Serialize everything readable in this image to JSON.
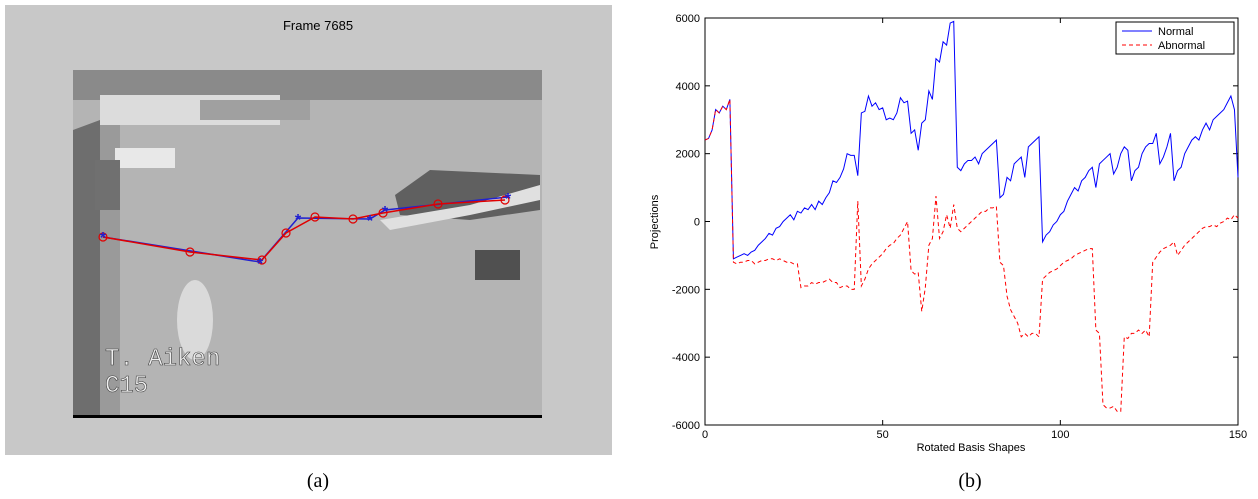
{
  "panel_a": {
    "title": "Frame 7685",
    "overlay_lines": [
      "T. Aiken",
      "C15"
    ],
    "caption": "(a)"
  },
  "chart_data": {
    "type": "line",
    "caption": "(b)",
    "xlabel": "Rotated Basis Shapes",
    "ylabel": "Projections",
    "xlim": [
      0,
      150
    ],
    "xticks": [
      0,
      50,
      100,
      150
    ],
    "ylim": [
      -6000,
      6000
    ],
    "yticks": [
      -6000,
      -4000,
      -2000,
      0,
      2000,
      4000,
      6000
    ],
    "legend": "upper right",
    "x": [
      0,
      1,
      2,
      3,
      4,
      5,
      6,
      7,
      8,
      9,
      10,
      11,
      12,
      13,
      14,
      15,
      16,
      17,
      18,
      19,
      20,
      21,
      22,
      23,
      24,
      25,
      26,
      27,
      28,
      29,
      30,
      31,
      32,
      33,
      34,
      35,
      36,
      37,
      38,
      39,
      40,
      41,
      42,
      43,
      44,
      45,
      46,
      47,
      48,
      49,
      50,
      51,
      52,
      53,
      54,
      55,
      56,
      57,
      58,
      59,
      60,
      61,
      62,
      63,
      64,
      65,
      66,
      67,
      68,
      69,
      70,
      71,
      72,
      73,
      74,
      75,
      76,
      77,
      78,
      79,
      80,
      81,
      82,
      83,
      84,
      85,
      86,
      87,
      88,
      89,
      90,
      91,
      92,
      93,
      94,
      95,
      96,
      97,
      98,
      99,
      100,
      101,
      102,
      103,
      104,
      105,
      106,
      107,
      108,
      109,
      110,
      111,
      112,
      113,
      114,
      115,
      116,
      117,
      118,
      119,
      120,
      121,
      122,
      123,
      124,
      125,
      126,
      127,
      128,
      129,
      130,
      131,
      132,
      133,
      134,
      135,
      136,
      137,
      138,
      139,
      140,
      141,
      142,
      143,
      144,
      145,
      146,
      147,
      148,
      149,
      150
    ],
    "series": [
      {
        "name": "Normal",
        "color": "#0000ff",
        "dash": false,
        "values": [
          2400,
          2450,
          2700,
          3300,
          3200,
          3400,
          3300,
          3600,
          -1100,
          -1050,
          -1000,
          -950,
          -1000,
          -900,
          -850,
          -700,
          -600,
          -500,
          -350,
          -400,
          -200,
          -150,
          0,
          100,
          200,
          50,
          300,
          250,
          400,
          350,
          500,
          350,
          600,
          500,
          700,
          850,
          1200,
          1150,
          1300,
          1550,
          2000,
          1950,
          1950,
          1350,
          3200,
          3250,
          3700,
          3400,
          3500,
          3300,
          3350,
          3000,
          3050,
          3000,
          3200,
          3650,
          3500,
          3550,
          2600,
          2700,
          2100,
          2900,
          3000,
          3850,
          3600,
          4800,
          4700,
          5300,
          5200,
          5850,
          5900,
          1600,
          1500,
          1700,
          1800,
          1800,
          1900,
          1700,
          2000,
          2100,
          2200,
          2300,
          2400,
          700,
          800,
          1300,
          1200,
          1700,
          1800,
          1900,
          1300,
          2200,
          2300,
          2400,
          2500,
          -600,
          -400,
          -300,
          -100,
          0,
          200,
          300,
          600,
          800,
          1000,
          900,
          1200,
          1300,
          1500,
          1600,
          1000,
          1700,
          1800,
          1900,
          2000,
          1400,
          1600,
          2000,
          2200,
          2100,
          1200,
          1500,
          1600,
          2000,
          2200,
          2300,
          2300,
          2600,
          1700,
          1900,
          2200,
          2600,
          1200,
          1500,
          1600,
          2000,
          2200,
          2400,
          2500,
          2400,
          2700,
          2900,
          2700,
          3000,
          3100,
          3200,
          3300,
          3500,
          3700,
          3300,
          1300
        ]
      },
      {
        "name": "Abnormal",
        "color": "#ff0000",
        "dash": true,
        "values": [
          2400,
          2450,
          2700,
          3300,
          3200,
          3400,
          3300,
          3600,
          -1200,
          -1250,
          -1200,
          -1200,
          -1150,
          -1150,
          -1250,
          -1200,
          -1150,
          -1150,
          -1100,
          -1100,
          -1150,
          -1100,
          -1150,
          -1200,
          -1200,
          -1250,
          -1250,
          -1950,
          -1900,
          -1900,
          -1800,
          -1850,
          -1800,
          -1800,
          -1750,
          -1700,
          -1800,
          -1800,
          -1950,
          -1900,
          -1900,
          -2000,
          -2000,
          600,
          -1900,
          -1700,
          -1400,
          -1250,
          -1150,
          -1050,
          -950,
          -800,
          -700,
          -650,
          -500,
          -400,
          -200,
          0,
          -1450,
          -1550,
          -1500,
          -2650,
          -1950,
          -700,
          -500,
          750,
          -500,
          -300,
          200,
          -200,
          500,
          -200,
          -300,
          -200,
          -100,
          0,
          100,
          200,
          300,
          300,
          400,
          400,
          450,
          -1200,
          -1300,
          -2200,
          -2600,
          -2800,
          -3000,
          -3400,
          -3300,
          -3400,
          -3300,
          -3300,
          -3400,
          -1700,
          -1600,
          -1500,
          -1450,
          -1400,
          -1300,
          -1200,
          -1150,
          -1100,
          -1000,
          -950,
          -900,
          -850,
          -800,
          -800,
          -3200,
          -3300,
          -5400,
          -5500,
          -5500,
          -5450,
          -5600,
          -5600,
          -3400,
          -3450,
          -3300,
          -3300,
          -3200,
          -3300,
          -3200,
          -3400,
          -1200,
          -1050,
          -900,
          -800,
          -750,
          -700,
          -600,
          -1000,
          -850,
          -700,
          -600,
          -500,
          -400,
          -300,
          -200,
          -150,
          -150,
          -100,
          -150,
          -50,
          0,
          100,
          50,
          200,
          100
        ]
      }
    ]
  }
}
